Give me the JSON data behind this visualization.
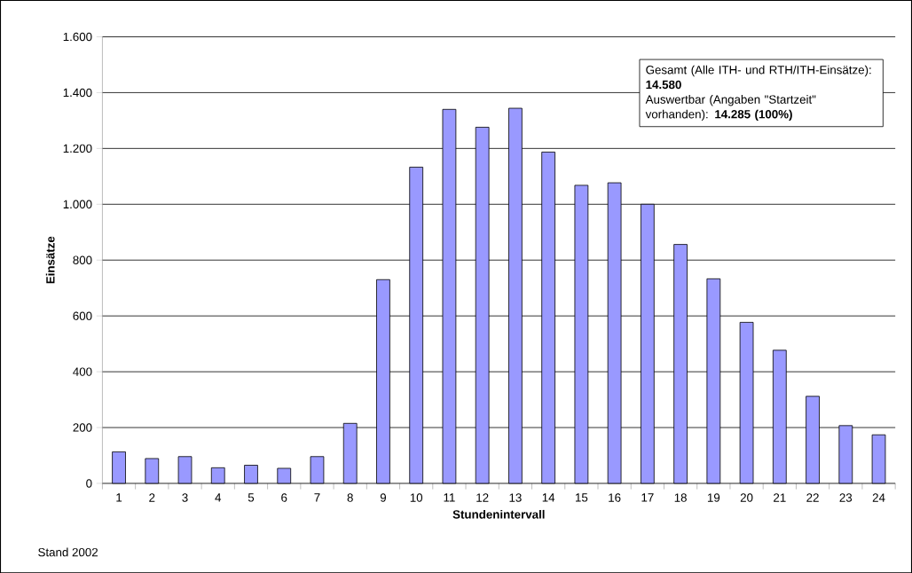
{
  "chart_data": {
    "type": "bar",
    "xlabel": "Stundenintervall",
    "ylabel": "Einsätze",
    "categories": [
      "1",
      "2",
      "3",
      "4",
      "5",
      "6",
      "7",
      "8",
      "9",
      "10",
      "11",
      "12",
      "13",
      "14",
      "15",
      "16",
      "17",
      "18",
      "19",
      "20",
      "21",
      "22",
      "23",
      "24"
    ],
    "values": [
      113,
      89,
      96,
      56,
      65,
      54,
      96,
      215,
      730,
      1133,
      1340,
      1276,
      1344,
      1187,
      1068,
      1077,
      1000,
      856,
      733,
      577,
      477,
      312,
      207,
      174
    ],
    "color": "#9999ff",
    "ylim": [
      0,
      1600
    ],
    "yticks": [
      0,
      200,
      400,
      600,
      800,
      {
        "value": 1000,
        "label": "1.000"
      },
      {
        "value": 1200,
        "label": "1.200"
      },
      {
        "value": 1400,
        "label": "1.400"
      },
      {
        "value": 1600,
        "label": "1.600"
      }
    ],
    "grid": "y",
    "annotations": [
      "Gesamt (Alle ITH- und RTH/ITH-Einsätze):  **14.580**",
      "Auswertbar (Angaben \"Startzeit\" vorhanden): **14.285 (100%)**",
      "Stand 2002"
    ]
  }
}
